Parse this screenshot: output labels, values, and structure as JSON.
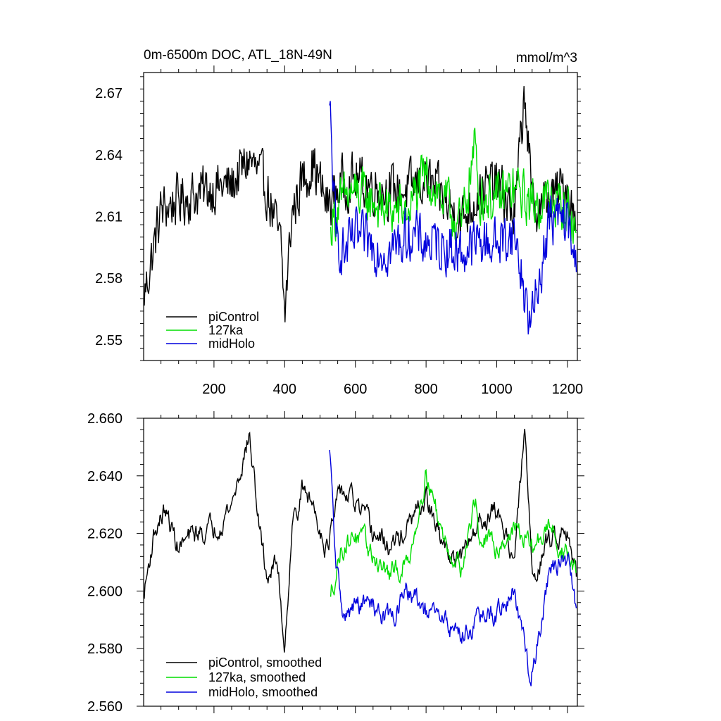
{
  "chart_data": [
    {
      "type": "line",
      "title": "0m-6500m DOC, ATL_18N-49N",
      "units": "mmol/m^3",
      "xlabel": "",
      "ylabel": "",
      "xlim": [
        1,
        1228
      ],
      "ylim": [
        2.54,
        2.68
      ],
      "xticks": [
        200,
        400,
        600,
        800,
        1000,
        1200
      ],
      "xtick_labels": [
        "200",
        "400",
        "600",
        "800",
        "1000",
        "1200"
      ],
      "yticks": [
        2.55,
        2.58,
        2.61,
        2.64,
        2.67
      ],
      "ytick_labels": [
        "2.55",
        "2.58",
        "2.61",
        "2.64",
        "2.67"
      ],
      "grid": false,
      "legend_position": "bottom-left",
      "series": [
        {
          "name": "piControl",
          "color": "#000000",
          "x": [
            1,
            50,
            100,
            150,
            200,
            250,
            300,
            350,
            390,
            400,
            420,
            450,
            480,
            520,
            560,
            600,
            650,
            700,
            750,
            800,
            850,
            900,
            950,
            1000,
            1050,
            1080,
            1100,
            1150,
            1200,
            1225
          ],
          "y": [
            2.57,
            2.613,
            2.618,
            2.621,
            2.624,
            2.625,
            2.638,
            2.623,
            2.595,
            2.561,
            2.611,
            2.628,
            2.636,
            2.615,
            2.626,
            2.628,
            2.625,
            2.622,
            2.623,
            2.628,
            2.618,
            2.608,
            2.622,
            2.626,
            2.61,
            2.672,
            2.614,
            2.618,
            2.626,
            2.603
          ]
        },
        {
          "name": "127ka",
          "color": "#00dd00",
          "x": [
            530,
            560,
            600,
            650,
            700,
            750,
            800,
            850,
            900,
            940,
            950,
            1000,
            1050,
            1100,
            1150,
            1200,
            1225
          ],
          "y": [
            2.605,
            2.618,
            2.622,
            2.617,
            2.612,
            2.614,
            2.63,
            2.618,
            2.605,
            2.646,
            2.62,
            2.618,
            2.624,
            2.616,
            2.618,
            2.614,
            2.601
          ]
        },
        {
          "name": "midHolo",
          "color": "#0000dd",
          "x": [
            527,
            545,
            570,
            600,
            650,
            700,
            750,
            800,
            850,
            900,
            950,
            1000,
            1050,
            1095,
            1150,
            1200,
            1225
          ],
          "y": [
            2.664,
            2.6,
            2.592,
            2.6,
            2.596,
            2.593,
            2.602,
            2.597,
            2.596,
            2.592,
            2.598,
            2.597,
            2.602,
            2.556,
            2.609,
            2.608,
            2.583
          ]
        }
      ]
    },
    {
      "type": "line",
      "title": "",
      "xlabel": "",
      "ylabel": "",
      "xlim": [
        1,
        1228
      ],
      "ylim": [
        2.56,
        2.66
      ],
      "xticks": [
        200,
        400,
        600,
        800,
        1000,
        1200
      ],
      "yticks": [
        2.56,
        2.58,
        2.6,
        2.62,
        2.64,
        2.66
      ],
      "ytick_labels": [
        "2.560",
        "2.580",
        "2.600",
        "2.620",
        "2.640",
        "2.660"
      ],
      "grid": false,
      "legend_position": "bottom-left",
      "series": [
        {
          "name": "piControl, smoothed",
          "color": "#000000",
          "x": [
            1,
            30,
            60,
            100,
            150,
            200,
            250,
            300,
            330,
            350,
            380,
            400,
            420,
            450,
            480,
            520,
            560,
            600,
            650,
            700,
            750,
            800,
            850,
            900,
            950,
            1000,
            1050,
            1080,
            1100,
            1150,
            1200,
            1225
          ],
          "y": [
            2.598,
            2.62,
            2.628,
            2.615,
            2.62,
            2.622,
            2.63,
            2.654,
            2.62,
            2.605,
            2.61,
            2.58,
            2.622,
            2.635,
            2.63,
            2.615,
            2.635,
            2.63,
            2.62,
            2.615,
            2.622,
            2.632,
            2.615,
            2.61,
            2.625,
            2.628,
            2.612,
            2.656,
            2.605,
            2.618,
            2.623,
            2.605
          ]
        },
        {
          "name": "127ka, smoothed",
          "color": "#00dd00",
          "x": [
            530,
            560,
            600,
            650,
            700,
            750,
            800,
            850,
            900,
            940,
            950,
            1000,
            1050,
            1100,
            1150,
            1200,
            1225
          ],
          "y": [
            2.598,
            2.615,
            2.62,
            2.612,
            2.605,
            2.61,
            2.642,
            2.618,
            2.608,
            2.632,
            2.618,
            2.615,
            2.622,
            2.615,
            2.622,
            2.612,
            2.606
          ]
        },
        {
          "name": "midHolo, smoothed",
          "color": "#0000dd",
          "x": [
            527,
            545,
            570,
            600,
            650,
            700,
            750,
            800,
            850,
            900,
            950,
            1000,
            1050,
            1095,
            1150,
            1200,
            1225
          ],
          "y": [
            2.649,
            2.608,
            2.59,
            2.595,
            2.595,
            2.59,
            2.6,
            2.592,
            2.59,
            2.585,
            2.59,
            2.592,
            2.6,
            2.568,
            2.608,
            2.61,
            2.594
          ]
        }
      ]
    }
  ]
}
